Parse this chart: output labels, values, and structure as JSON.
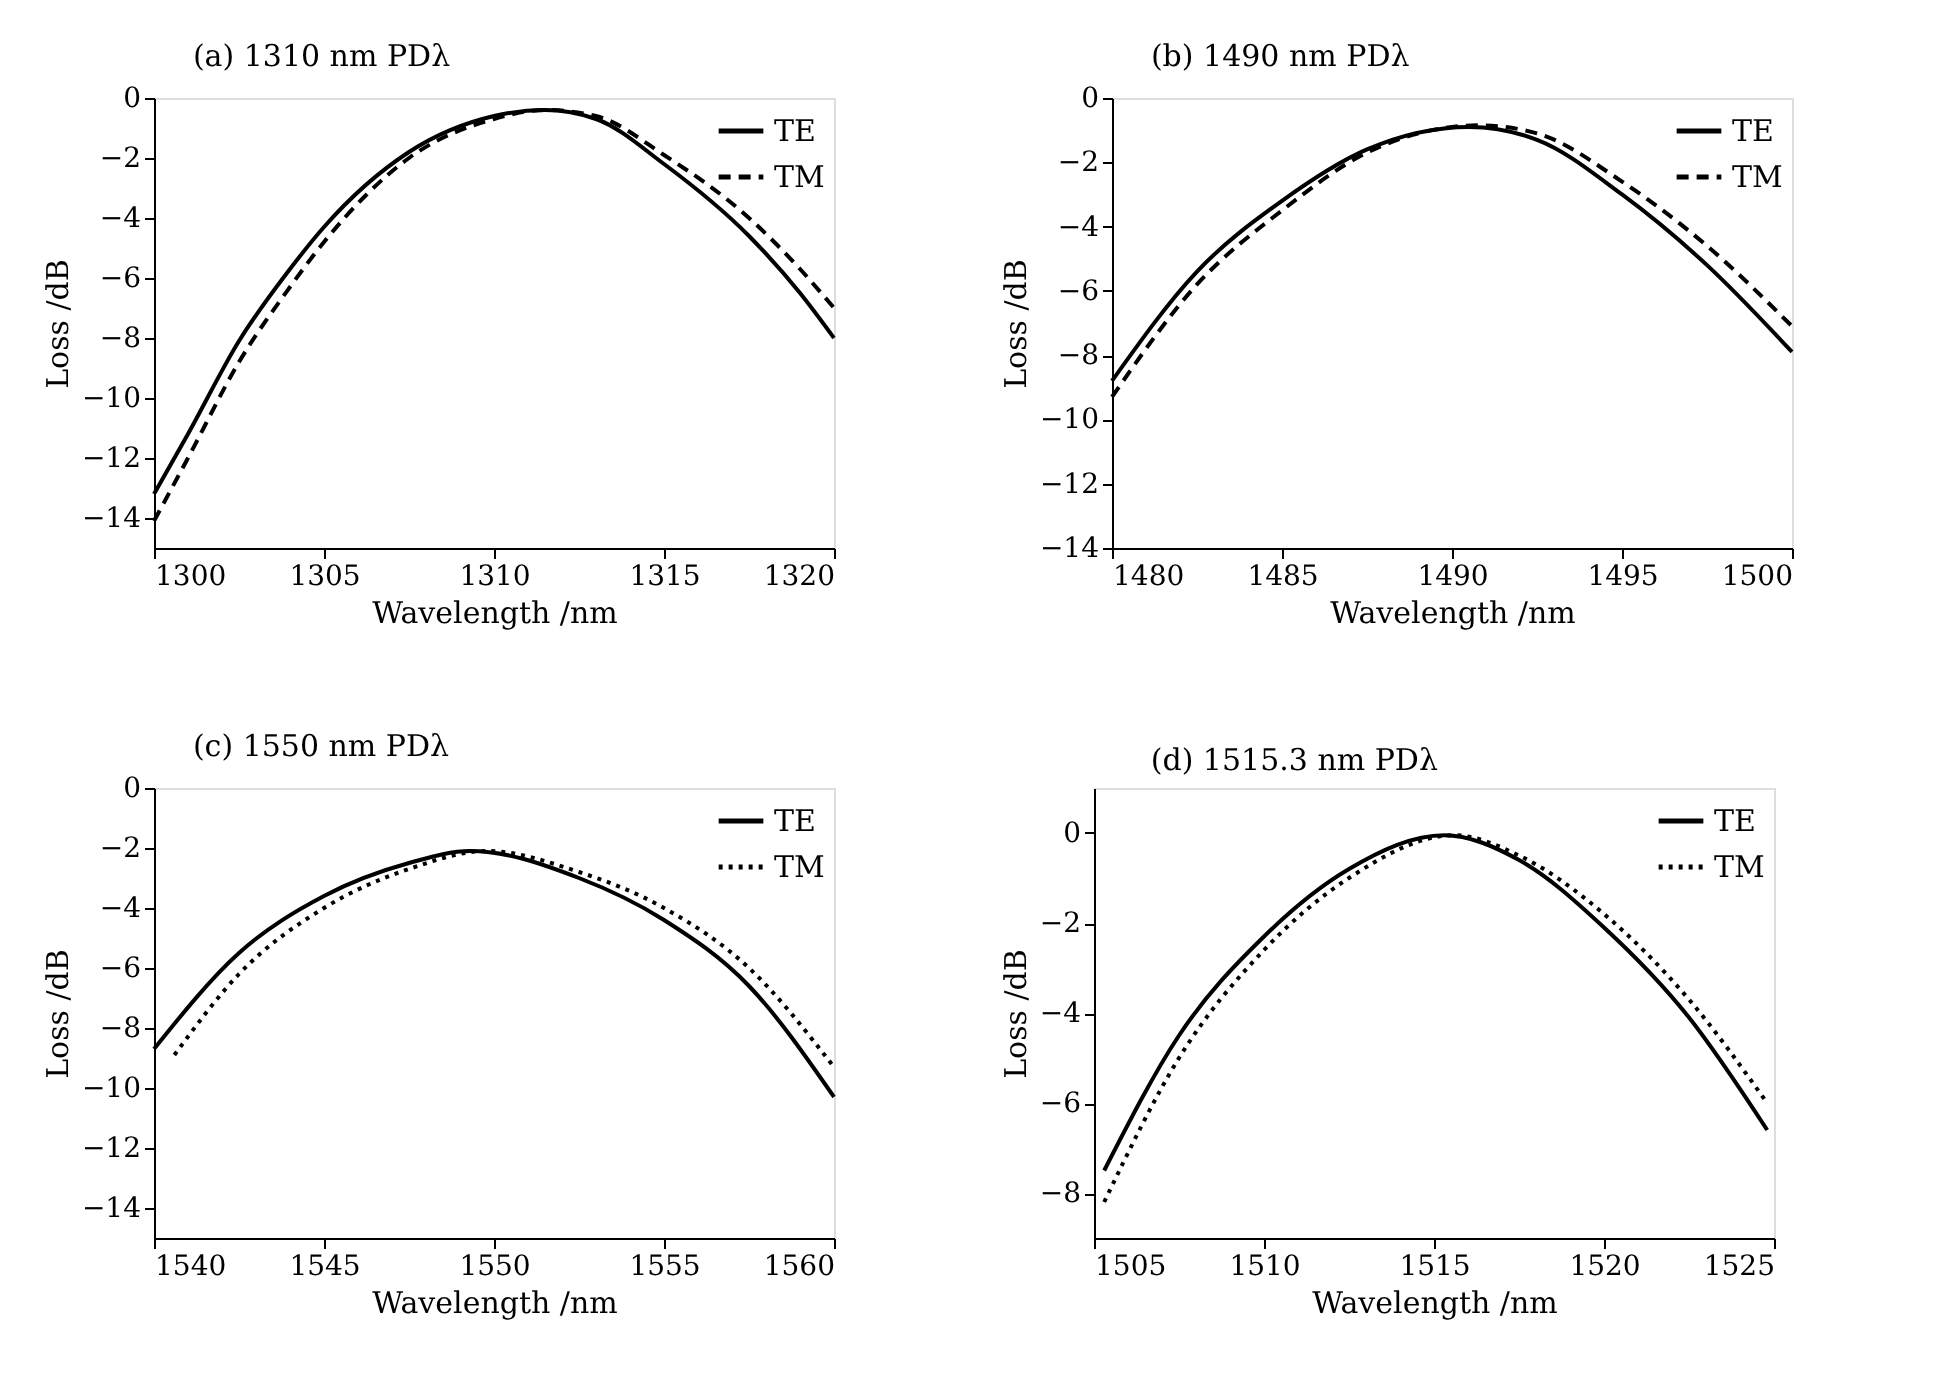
{
  "chart_data": [
    {
      "type": "line",
      "title": "(a) 1310 nm PDλ",
      "xlabel": "Wavelength /nm",
      "ylabel": "Loss /dB",
      "xlim": [
        1300,
        1320
      ],
      "xticks": [
        1300,
        1305,
        1310,
        1315,
        1320
      ],
      "ylim": [
        -15,
        0
      ],
      "yticks": [
        0,
        -2,
        -4,
        -6,
        -8,
        -10,
        -12,
        -14
      ],
      "legend": "top right",
      "grid": false,
      "series": [
        {
          "name": "TE",
          "color": "#000000",
          "line_style": "solid",
          "x": [
            1300,
            1301,
            1302.5,
            1304,
            1305,
            1307.5,
            1310,
            1311.5,
            1313,
            1315,
            1317.5,
            1319,
            1320
          ],
          "values": [
            -13.2,
            -11.2,
            -8.1,
            -5.7,
            -4.3,
            -1.8,
            -0.6,
            -0.4,
            -0.7,
            -2.2,
            -4.6,
            -6.5,
            -8.0
          ]
        },
        {
          "name": "TM",
          "color": "#000000",
          "line_style": "dashed",
          "x": [
            1300,
            1301,
            1302.5,
            1304,
            1305,
            1307.5,
            1310,
            1311.5,
            1313,
            1315,
            1317.5,
            1319,
            1320
          ],
          "values": [
            -14.1,
            -12.0,
            -8.8,
            -6.3,
            -4.8,
            -2.0,
            -0.7,
            -0.4,
            -0.6,
            -1.9,
            -4.0,
            -5.7,
            -7.0
          ]
        }
      ]
    },
    {
      "type": "line",
      "title": "(b) 1490 nm PDλ",
      "xlabel": "Wavelength /nm",
      "ylabel": "Loss /dB",
      "xlim": [
        1480,
        1500
      ],
      "xticks": [
        1480,
        1485,
        1490,
        1495,
        1500
      ],
      "ylim": [
        -14,
        0
      ],
      "yticks": [
        0,
        -2,
        -4,
        -6,
        -8,
        -10,
        -12,
        -14
      ],
      "legend": "top right",
      "grid": false,
      "series": [
        {
          "name": "TE",
          "color": "#000000",
          "line_style": "solid",
          "x": [
            1480,
            1482.5,
            1485,
            1487.5,
            1490.5,
            1492.5,
            1495,
            1497.5,
            1500
          ],
          "values": [
            -8.8,
            -5.4,
            -3.2,
            -1.6,
            -0.9,
            -1.3,
            -3.0,
            -5.2,
            -7.9
          ]
        },
        {
          "name": "TM",
          "color": "#000000",
          "line_style": "dashed",
          "x": [
            1480,
            1482.5,
            1485,
            1487.5,
            1490.8,
            1492.5,
            1495,
            1497.5,
            1500
          ],
          "values": [
            -9.3,
            -5.8,
            -3.5,
            -1.7,
            -0.85,
            -1.1,
            -2.6,
            -4.6,
            -7.1
          ]
        }
      ]
    },
    {
      "type": "line",
      "title": "(c) 1550 nm PDλ",
      "xlabel": "Wavelength /nm",
      "ylabel": "Loss /dB",
      "xlim": [
        1540,
        1560
      ],
      "xticks": [
        1540,
        1545,
        1550,
        1555,
        1560
      ],
      "ylim": [
        -15,
        0
      ],
      "yticks": [
        0,
        -2,
        -4,
        -6,
        -8,
        -10,
        -12,
        -14
      ],
      "legend": "top right",
      "grid": false,
      "series": [
        {
          "name": "TE",
          "color": "#000000",
          "line_style": "solid",
          "x": [
            1540,
            1542.5,
            1545,
            1547.5,
            1549.3,
            1552.5,
            1555,
            1557.5,
            1560
          ],
          "values": [
            -8.7,
            -5.5,
            -3.6,
            -2.5,
            -2.1,
            -3.0,
            -4.4,
            -6.6,
            -10.3
          ]
        },
        {
          "name": "TM",
          "color": "#000000",
          "line_style": "dotted",
          "x": [
            1540.6,
            1542.5,
            1545,
            1547.5,
            1549.8,
            1552.5,
            1555,
            1557.5,
            1560
          ],
          "values": [
            -8.9,
            -6.2,
            -4.0,
            -2.7,
            -2.1,
            -2.8,
            -4.0,
            -6.0,
            -9.3
          ]
        }
      ]
    },
    {
      "type": "line",
      "title": "(d) 1515.3 nm PDλ",
      "xlabel": "Wavelength /nm",
      "ylabel": "Loss /dB",
      "xlim": [
        1505,
        1525
      ],
      "xticks": [
        1505,
        1510,
        1515,
        1520,
        1525
      ],
      "ylim": [
        -9,
        1
      ],
      "yticks": [
        0,
        -2,
        -4,
        -6,
        -8
      ],
      "legend": "top right",
      "grid": false,
      "series": [
        {
          "name": "TE",
          "color": "#000000",
          "line_style": "solid",
          "x": [
            1505.3,
            1507.5,
            1510,
            1512.5,
            1515.3,
            1517.5,
            1520,
            1522.5,
            1524.8
          ],
          "values": [
            -7.5,
            -4.5,
            -2.3,
            -0.8,
            -0.05,
            -0.6,
            -2.1,
            -4.1,
            -6.6
          ]
        },
        {
          "name": "TM",
          "color": "#000000",
          "line_style": "dotted",
          "x": [
            1505.3,
            1507.5,
            1510,
            1512.5,
            1515.6,
            1517.5,
            1520,
            1522.5,
            1524.8
          ],
          "values": [
            -8.2,
            -5.0,
            -2.6,
            -1.0,
            -0.05,
            -0.5,
            -1.8,
            -3.7,
            -6.0
          ]
        }
      ]
    }
  ]
}
